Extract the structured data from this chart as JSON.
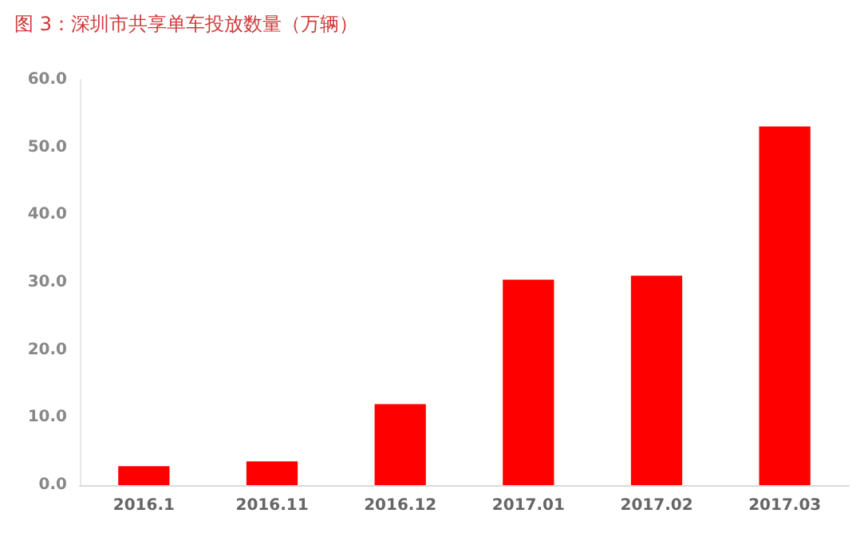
{
  "chart_data": {
    "type": "bar",
    "title": "图 3：深圳市共享单车投放数量（万辆）",
    "categories": [
      "2016.1",
      "2016.11",
      "2016.12",
      "2017.01",
      "2017.02",
      "2017.03"
    ],
    "values": [
      2.8,
      3.5,
      12.0,
      30.4,
      31.0,
      53.1
    ],
    "color": "#ff0000",
    "ylim": [
      0,
      60
    ],
    "yticks": [
      {
        "value": 0,
        "label": "0.0"
      },
      {
        "value": 10,
        "label": "10.0"
      },
      {
        "value": 20,
        "label": "20.0"
      },
      {
        "value": 30,
        "label": "30.0"
      },
      {
        "value": 40,
        "label": "40.0"
      },
      {
        "value": 50,
        "label": "50.0"
      },
      {
        "value": 60,
        "label": "60.0"
      }
    ],
    "grid": false
  }
}
